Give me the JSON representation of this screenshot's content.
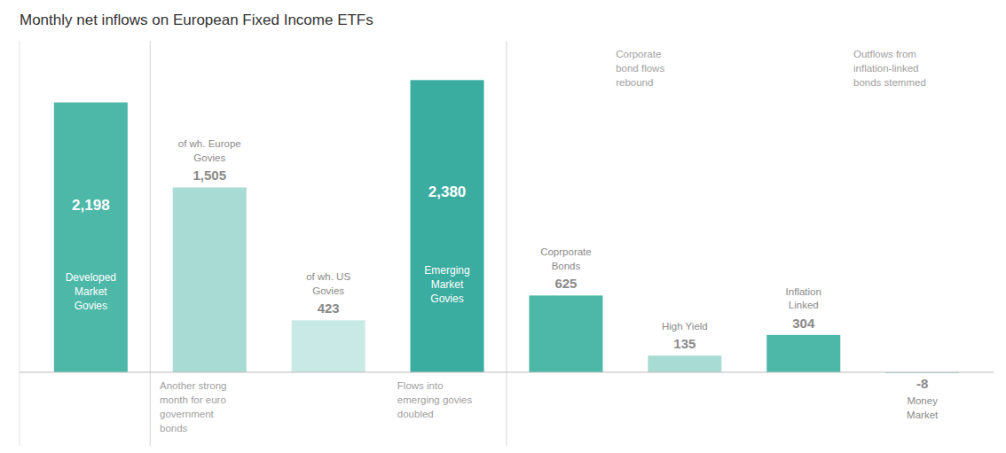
{
  "chart_data": {
    "type": "bar",
    "title": "Monthly net inflows on European Fixed Income ETFs",
    "categories": [
      "Developed\nMarket\nGovies",
      "of wh. Europe\nGovies",
      "of wh. US\nGovies",
      "Emerging\nMarket\nGovies",
      "Coprporate\nBonds",
      "High Yield",
      "Inflation\nLinked",
      "Money\nMarket"
    ],
    "values": [
      2198,
      1505,
      423,
      2380,
      625,
      135,
      304,
      -8
    ],
    "value_labels": [
      "2,198",
      "1,505",
      "423",
      "2,380",
      "625",
      "135",
      "304",
      "-8"
    ],
    "colors": [
      "#4db8a8",
      "#a8dbd3",
      "#c8e9e5",
      "#3aada0",
      "#4db8a8",
      "#a8dbd3",
      "#4db8a8",
      "#a8dbd3"
    ],
    "ylim": [
      -600,
      2700
    ],
    "tick_labels": false,
    "data_labels": true,
    "grid": false,
    "dividers": [
      0.5,
      3.5
    ],
    "annotations": [
      {
        "text": "Another strong\nmonth for euro\ngovernment\nbonds",
        "x": "of wh. Europe\nGovies",
        "position": "below"
      },
      {
        "text": "Flows into\nemerging govies\ndoubled",
        "x": "Emerging\nMarket\nGovies",
        "position": "below"
      },
      {
        "text": "Corporate\nbond flows\nrebound",
        "x": "Coprporate\nBonds",
        "position": "above"
      },
      {
        "text": "Outflows from\ninflation-linked\nbonds stemmed",
        "x": "Inflation\nLinked",
        "position": "above"
      }
    ]
  }
}
